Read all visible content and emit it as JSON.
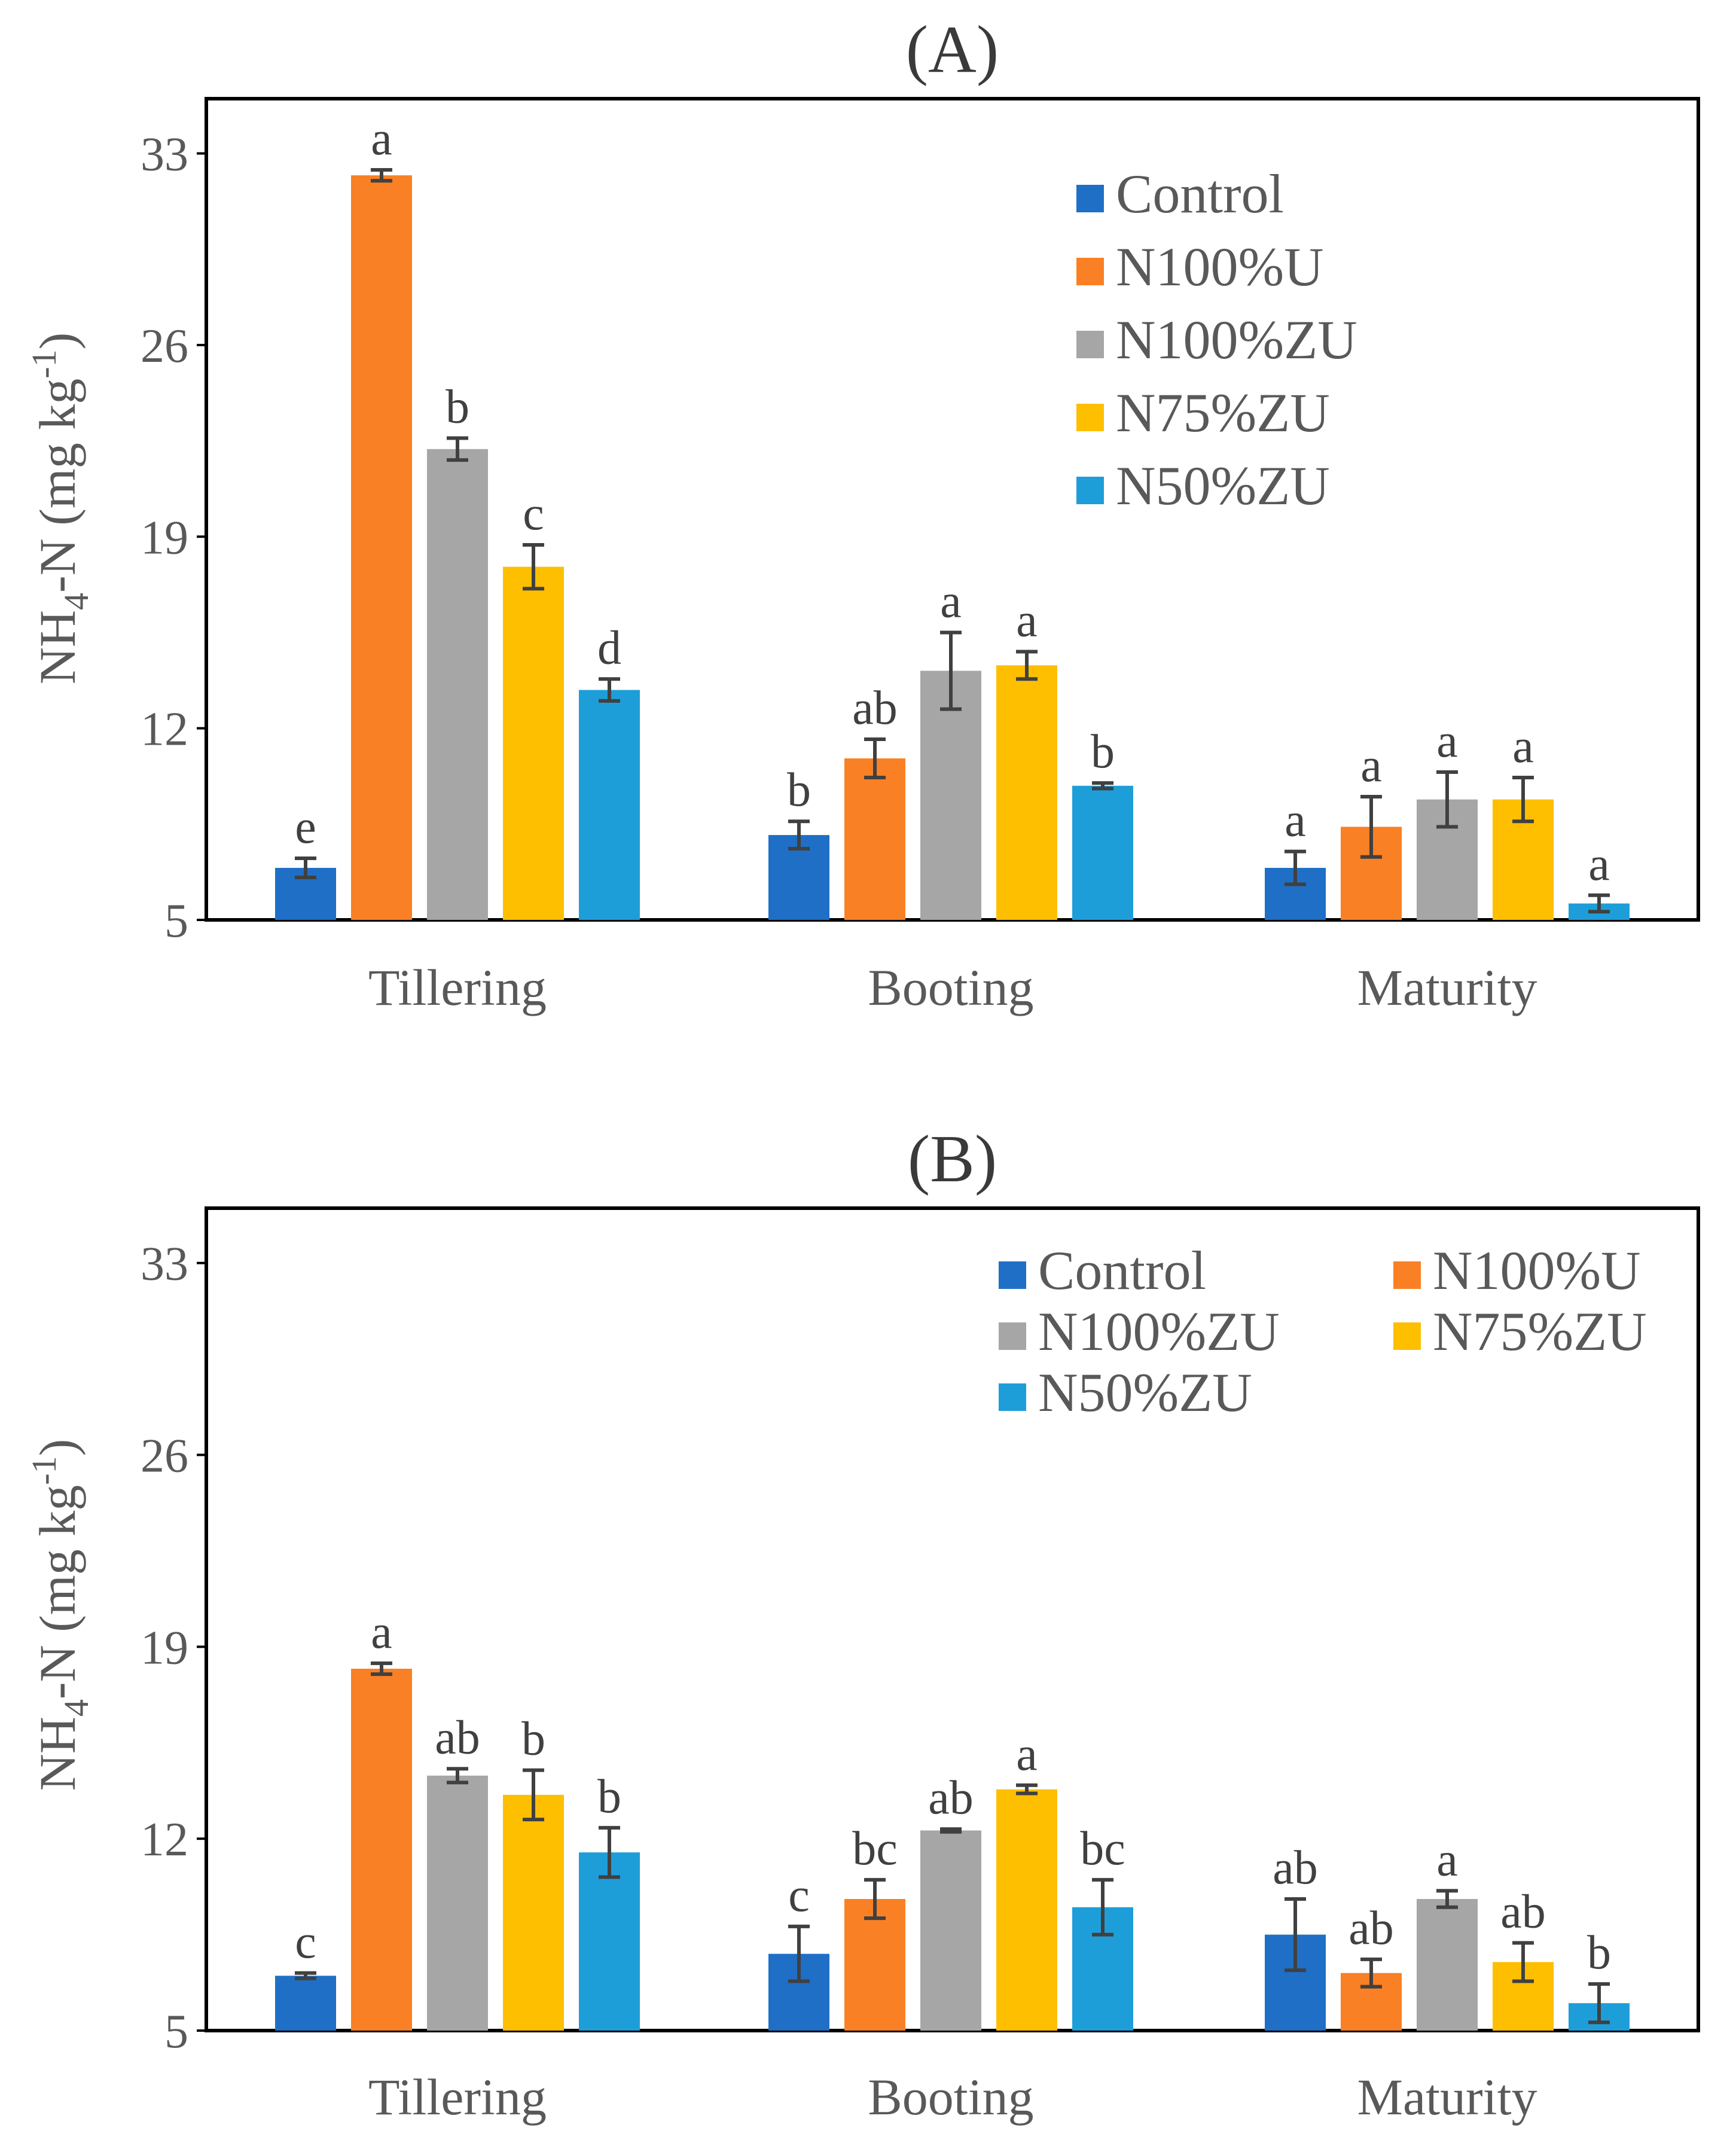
{
  "figure": {
    "colors": {
      "Control": "#1f6fc6",
      "N100%U": "#f98024",
      "N100%ZU": "#a6a6a6",
      "N75%ZU": "#fdbf00",
      "N50%ZU": "#1e9ed9"
    }
  },
  "chart_data": [
    {
      "type": "bar",
      "panel": "A",
      "title": "(A)",
      "ylabel": "NH4-N (mg kg-1)",
      "ylabel_main": "NH",
      "ylabel_sub": "4",
      "ylabel_mid": "-N (mg kg",
      "ylabel_sup": "-1",
      "ylabel_end": ")",
      "xlabel": "",
      "ylim": [
        5,
        35
      ],
      "yticks": [
        5,
        12,
        19,
        26,
        33
      ],
      "legend_position": "top-right",
      "legend_layout": "single-column",
      "categories": [
        "Tillering",
        "Booting",
        "Maturity"
      ],
      "series": [
        {
          "name": "Control",
          "values": [
            6.9,
            8.1,
            6.9
          ],
          "errors": [
            0.35,
            0.5,
            0.6
          ],
          "labels": [
            "e",
            "b",
            "a"
          ]
        },
        {
          "name": "N100%U",
          "values": [
            32.2,
            10.9,
            8.4
          ],
          "errors": [
            0.2,
            0.7,
            1.1
          ],
          "labels": [
            "a",
            "ab",
            "a"
          ]
        },
        {
          "name": "N100%ZU",
          "values": [
            22.2,
            14.1,
            9.4
          ],
          "errors": [
            0.4,
            1.4,
            1.0
          ],
          "labels": [
            "b",
            "a",
            "a"
          ]
        },
        {
          "name": "N75%ZU",
          "values": [
            17.9,
            14.3,
            9.4
          ],
          "errors": [
            0.8,
            0.5,
            0.8
          ],
          "labels": [
            "c",
            "a",
            "a"
          ]
        },
        {
          "name": "N50%ZU",
          "values": [
            13.4,
            9.9,
            5.6
          ],
          "errors": [
            0.4,
            0.1,
            0.3
          ],
          "labels": [
            "d",
            "b",
            "a"
          ]
        }
      ]
    },
    {
      "type": "bar",
      "panel": "B",
      "title": "(B)",
      "ylabel": "NH4-N (mg kg-1)",
      "ylabel_main": "NH",
      "ylabel_sub": "4",
      "ylabel_mid": "-N (mg kg",
      "ylabel_sup": "-1",
      "ylabel_end": ")",
      "xlabel": "",
      "ylim": [
        5,
        35
      ],
      "yticks": [
        5,
        12,
        19,
        26,
        33
      ],
      "legend_position": "top-right",
      "legend_layout": "two-column",
      "categories": [
        "Tillering",
        "Booting",
        "Maturity"
      ],
      "series": [
        {
          "name": "Control",
          "values": [
            7.0,
            7.8,
            8.5
          ],
          "errors": [
            0.1,
            1.0,
            1.3
          ],
          "labels": [
            "c",
            "c",
            "ab"
          ]
        },
        {
          "name": "N100%U",
          "values": [
            18.2,
            9.8,
            7.1
          ],
          "errors": [
            0.2,
            0.7,
            0.5
          ],
          "labels": [
            "a",
            "bc",
            "ab"
          ]
        },
        {
          "name": "N100%ZU",
          "values": [
            14.3,
            12.3,
            9.8
          ],
          "errors": [
            0.25,
            0.05,
            0.3
          ],
          "labels": [
            "ab",
            "ab",
            "a"
          ]
        },
        {
          "name": "N75%ZU",
          "values": [
            13.6,
            13.8,
            7.5
          ],
          "errors": [
            0.9,
            0.15,
            0.7
          ],
          "labels": [
            "b",
            "a",
            "ab"
          ]
        },
        {
          "name": "N50%ZU",
          "values": [
            11.5,
            9.5,
            6.0
          ],
          "errors": [
            0.9,
            1.0,
            0.7
          ],
          "labels": [
            "b",
            "bc",
            "b"
          ]
        }
      ]
    }
  ]
}
